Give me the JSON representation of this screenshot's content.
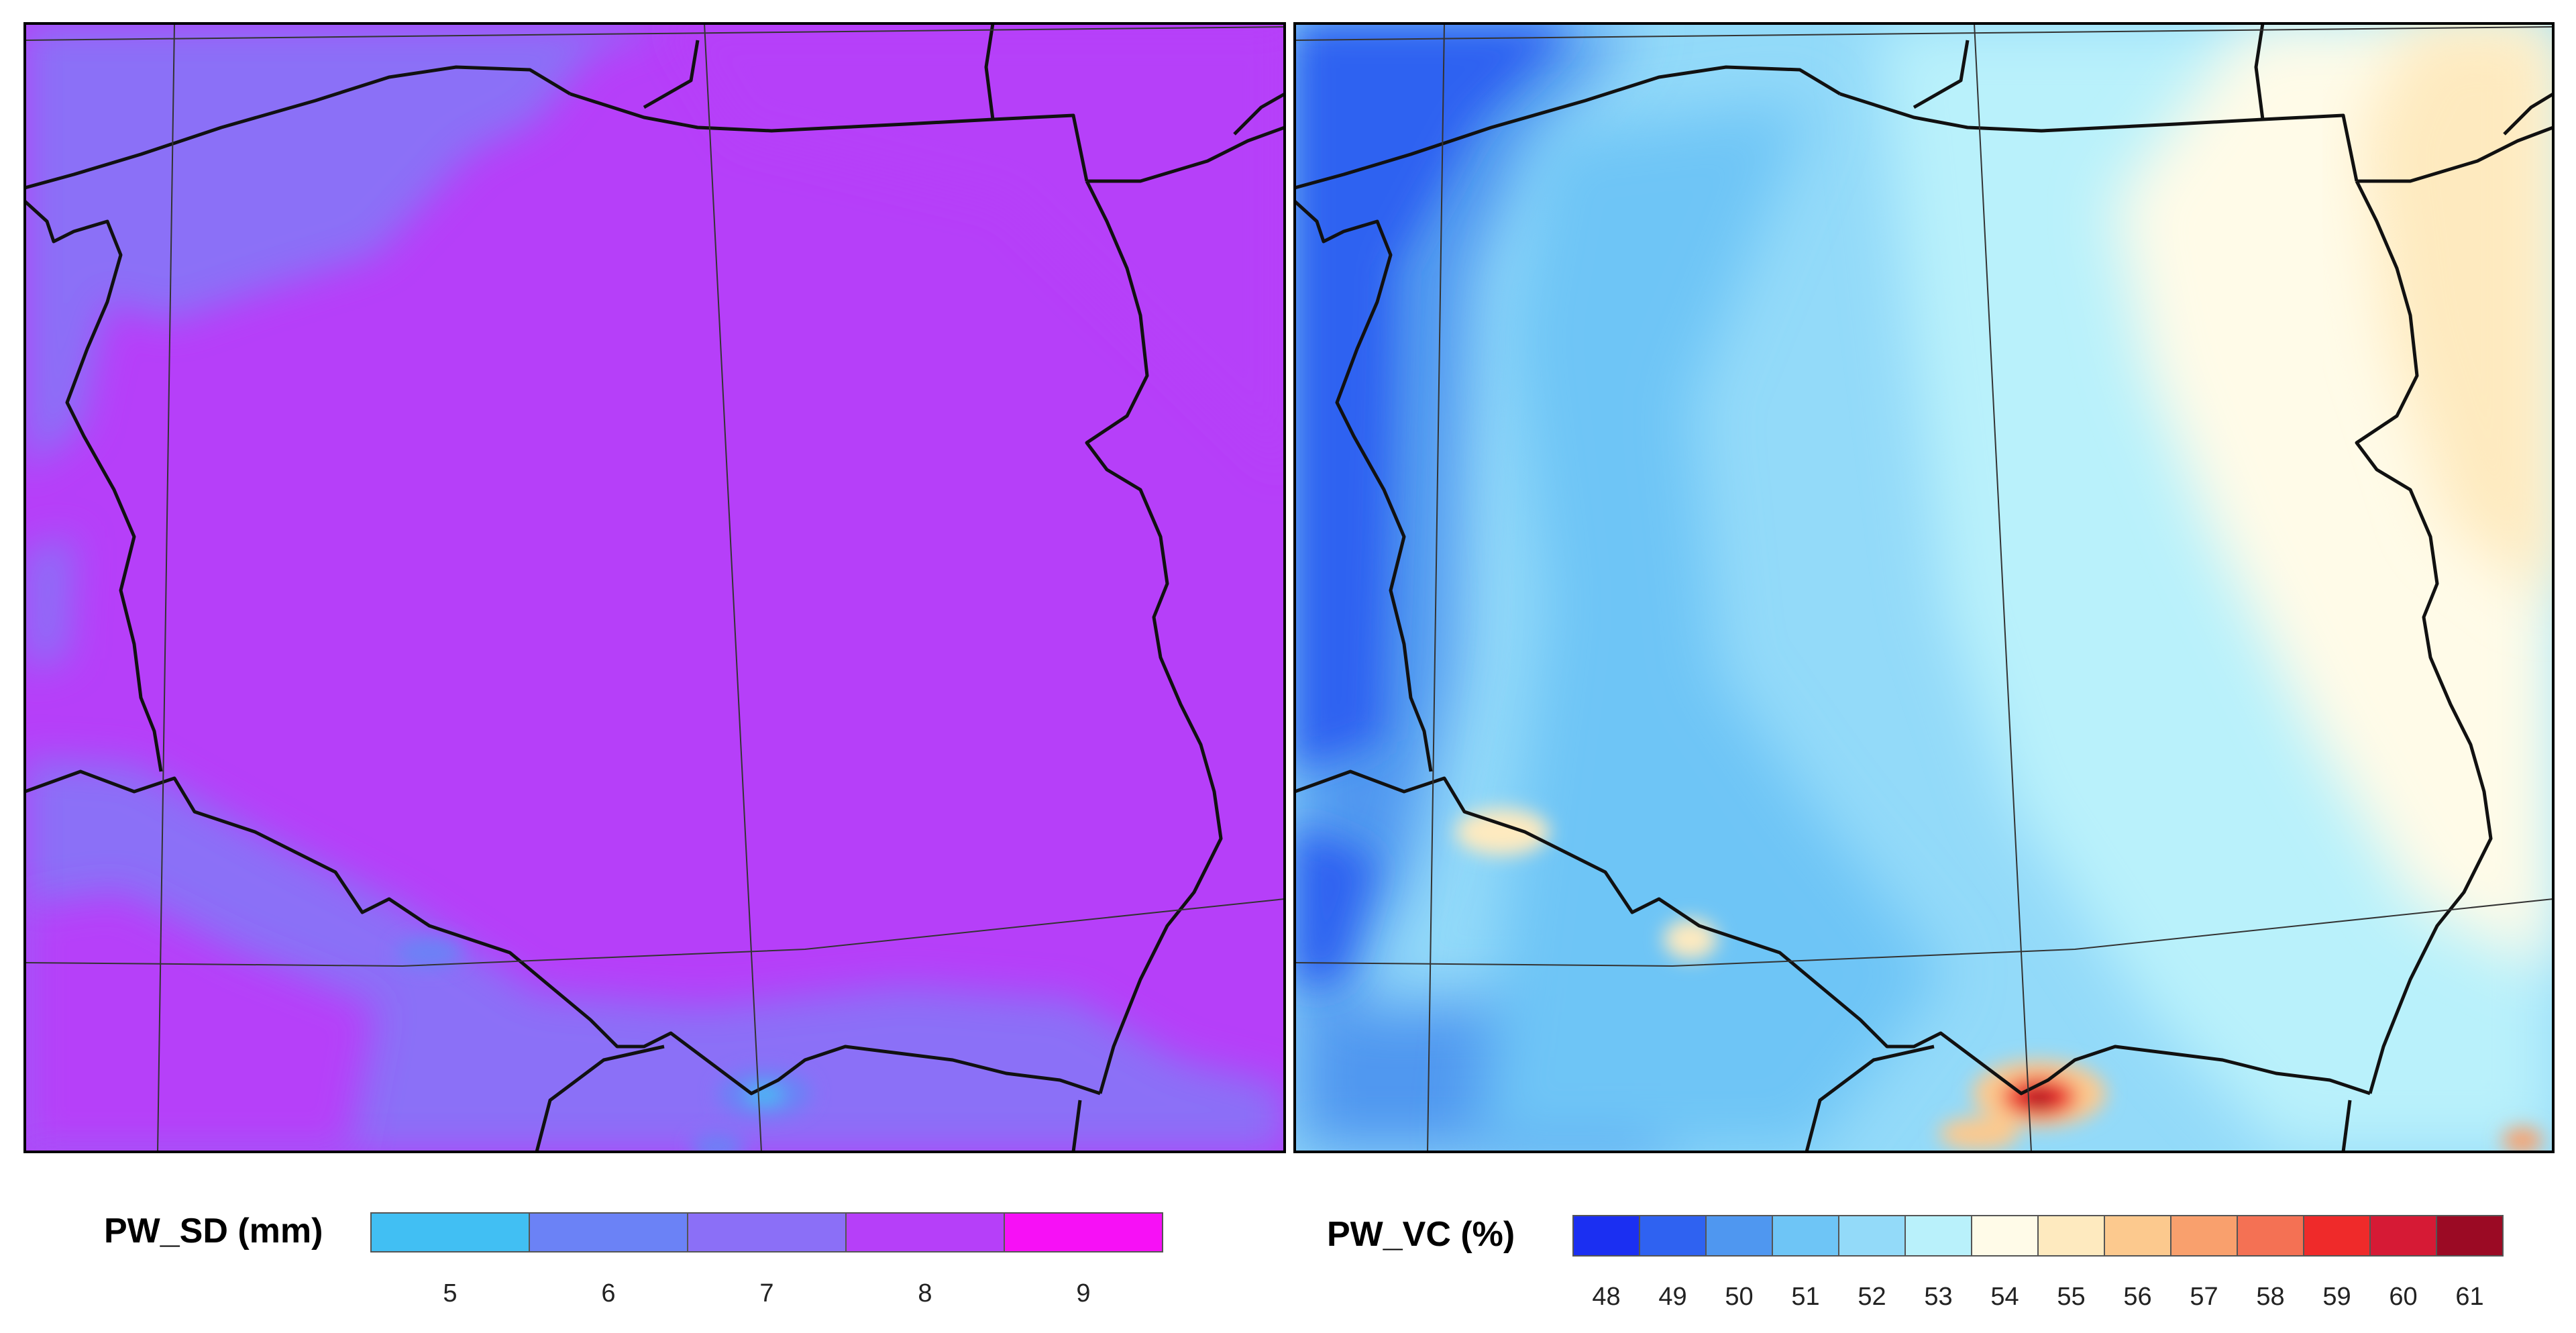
{
  "maps": [
    {
      "id": "pw_sd",
      "legend": {
        "title": "PW_SD (mm)",
        "colors": [
          "#41bff3",
          "#6b82f6",
          "#8b6ff7",
          "#b63ff9",
          "#f710f6"
        ],
        "ticks": [
          "5",
          "6",
          "7",
          "8",
          "9"
        ]
      }
    },
    {
      "id": "pw_vc",
      "legend": {
        "title": "PW_VC (%)",
        "colors": [
          "#1b2ff2",
          "#2f62f1",
          "#4f97f0",
          "#6ec5f6",
          "#93daf9",
          "#b9f1fb",
          "#fffbe8",
          "#feeabf",
          "#fcc98e",
          "#f9a06d",
          "#f47154",
          "#ef2a2a",
          "#d61a35",
          "#9b0a24"
        ],
        "ticks": [
          "48",
          "49",
          "50",
          "51",
          "52",
          "53",
          "54",
          "55",
          "56",
          "57",
          "58",
          "59",
          "60",
          "61"
        ]
      }
    }
  ]
}
